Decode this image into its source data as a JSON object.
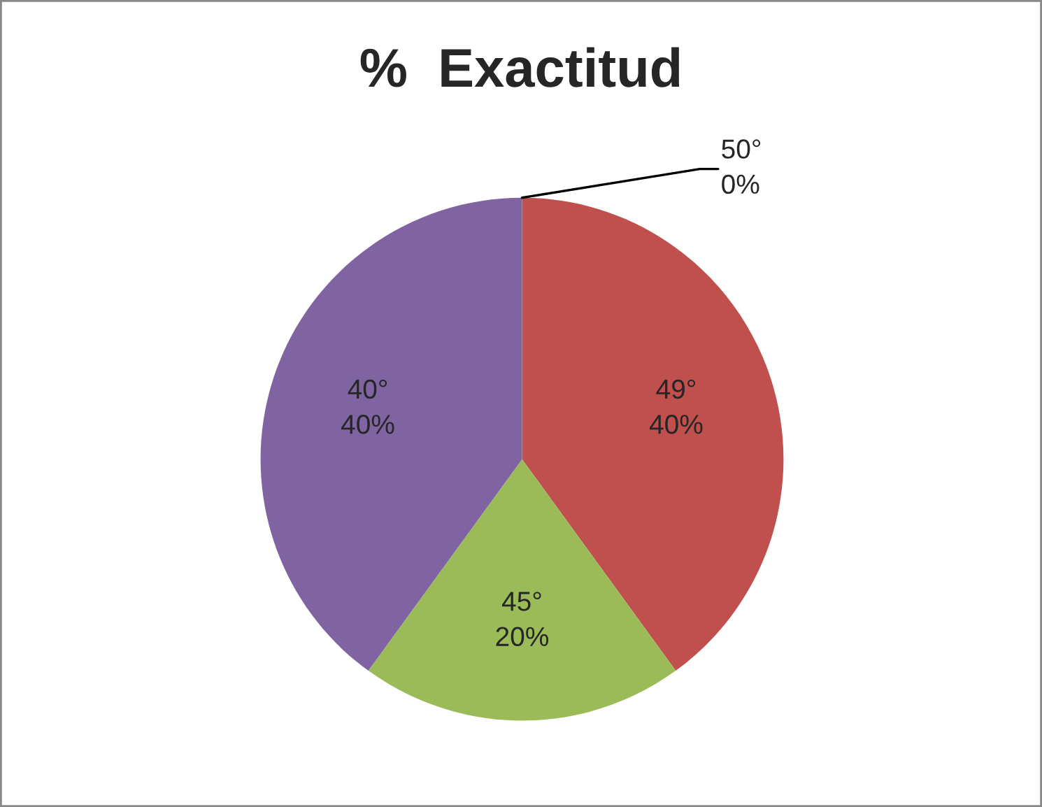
{
  "chart_data": {
    "type": "pie",
    "title": "%  Exactitud",
    "categories": [
      "50°",
      "49°",
      "45°",
      "40°"
    ],
    "values": [
      0,
      40,
      20,
      40
    ],
    "value_labels": [
      "0%",
      "40%",
      "20%",
      "40%"
    ],
    "colors": [
      "#4f81bd",
      "#c0504d",
      "#9bbb59",
      "#8064a2"
    ]
  }
}
